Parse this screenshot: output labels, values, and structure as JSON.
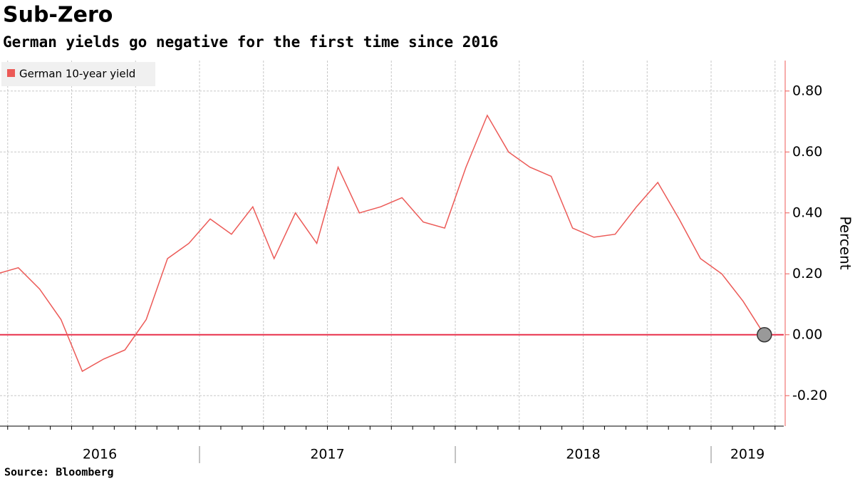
{
  "chart_data": {
    "type": "line",
    "title": "Sub-Zero",
    "subtitle": "German yields go negative for the first time since 2016",
    "y_label": "Percent",
    "source": "Source: Bloomberg",
    "x": [
      "2016-03",
      "2016-04",
      "2016-05",
      "2016-06",
      "2016-07",
      "2016-08",
      "2016-09",
      "2016-10",
      "2016-11",
      "2016-12",
      "2017-01",
      "2017-02",
      "2017-03",
      "2017-04",
      "2017-05",
      "2017-06",
      "2017-07",
      "2017-08",
      "2017-09",
      "2017-10",
      "2017-11",
      "2017-12",
      "2018-01",
      "2018-02",
      "2018-03",
      "2018-04",
      "2018-05",
      "2018-06",
      "2018-07",
      "2018-08",
      "2018-09",
      "2018-10",
      "2018-11",
      "2018-12",
      "2019-01",
      "2019-02",
      "2019-03"
    ],
    "series": [
      {
        "name": "German 10-year yield",
        "color": "#ec5a57",
        "values": [
          0.2,
          0.22,
          0.15,
          0.05,
          -0.12,
          -0.08,
          -0.05,
          0.05,
          0.25,
          0.3,
          0.38,
          0.33,
          0.42,
          0.25,
          0.4,
          0.3,
          0.55,
          0.4,
          0.42,
          0.45,
          0.37,
          0.35,
          0.55,
          0.72,
          0.6,
          0.55,
          0.52,
          0.35,
          0.32,
          0.33,
          0.42,
          0.5,
          0.38,
          0.25,
          0.2,
          0.11,
          0.0
        ]
      }
    ],
    "reference_line": {
      "value": 0,
      "color": "#e8304a"
    },
    "xticks": [
      "2016",
      "2017",
      "2018",
      "2019"
    ],
    "ylim": [
      -0.3,
      0.9
    ],
    "yticks": [
      {
        "value": -0.2,
        "label": "-0.20"
      },
      {
        "value": 0,
        "label": "0.00"
      },
      {
        "value": 0.2,
        "label": "0.20"
      },
      {
        "value": 0.4,
        "label": "0.40"
      },
      {
        "value": 0.6,
        "label": "0.60"
      },
      {
        "value": 0.8,
        "label": "0.80"
      }
    ],
    "grid": true,
    "legend": "top-left"
  }
}
